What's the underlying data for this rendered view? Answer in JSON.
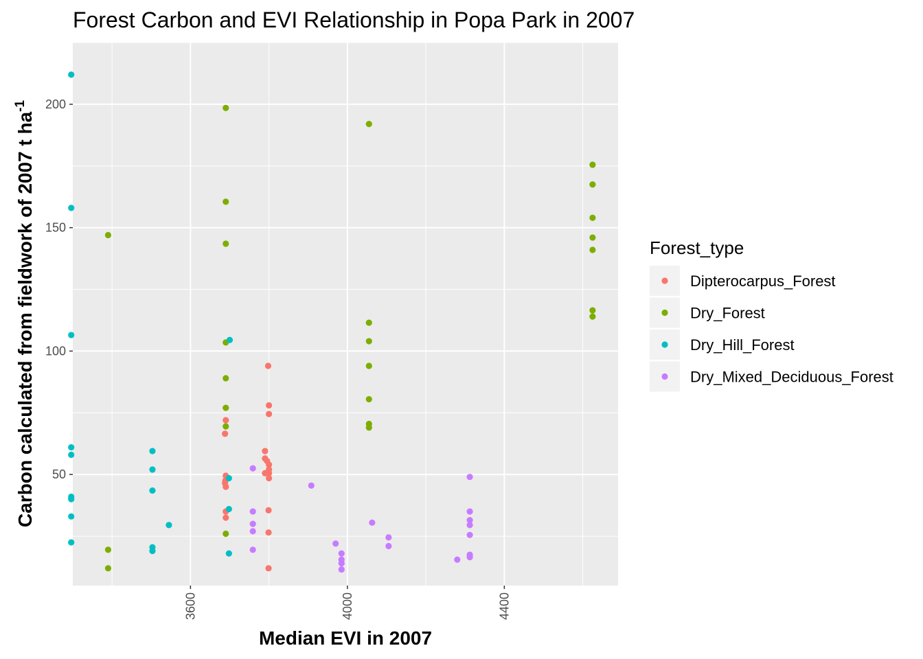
{
  "chart_data": {
    "type": "scatter",
    "title": "Forest Carbon and EVI Relationship in Popa Park in 2007",
    "xlabel": "Median EVI in 2007",
    "ylabel_main": "Carbon calculated from fieldwork of 2007 t ha",
    "ylabel_sup": "-1",
    "xlim": [
      3300,
      4690
    ],
    "ylim": [
      5,
      225
    ],
    "x_ticks": [
      3600,
      4000,
      4400
    ],
    "x_tick_labels": [
      "3600",
      "4000",
      "4400"
    ],
    "y_ticks": [
      50,
      100,
      150,
      200
    ],
    "y_tick_labels": [
      "50",
      "100",
      "150",
      "200"
    ],
    "grid": true,
    "background": "#ebebeb",
    "legend": {
      "title": "Forest_type",
      "placement": "right"
    },
    "series": [
      {
        "name": "Dipterocarpus_Forest",
        "color": "#f8766d",
        "points": [
          [
            3690,
            72
          ],
          [
            3688,
            66.5
          ],
          [
            3690,
            49.5
          ],
          [
            3689,
            47.5
          ],
          [
            3688,
            46.5
          ],
          [
            3690,
            45
          ],
          [
            3690,
            35
          ],
          [
            3690,
            32.5
          ],
          [
            3790,
            59.5
          ],
          [
            3790,
            56.5
          ],
          [
            3795,
            55.5
          ],
          [
            3800,
            54
          ],
          [
            3800,
            52
          ],
          [
            3790,
            50.5
          ],
          [
            3800,
            50.5
          ],
          [
            3800,
            48.5
          ],
          [
            3798,
            94
          ],
          [
            3800,
            78
          ],
          [
            3800,
            74.5
          ],
          [
            3799,
            35.5
          ],
          [
            3799,
            26.5
          ],
          [
            3799,
            12
          ]
        ]
      },
      {
        "name": "Dry_Forest",
        "color": "#7cae00",
        "points": [
          [
            3390,
            147
          ],
          [
            3390,
            19.5
          ],
          [
            3390,
            12
          ],
          [
            3690,
            198.5
          ],
          [
            3690,
            160.5
          ],
          [
            3690,
            143.5
          ],
          [
            3690,
            103.5
          ],
          [
            3690,
            89
          ],
          [
            3690,
            77
          ],
          [
            3690,
            69.5
          ],
          [
            3690,
            26
          ],
          [
            4055,
            192
          ],
          [
            4055,
            111.5
          ],
          [
            4055,
            104
          ],
          [
            4055,
            94
          ],
          [
            4055,
            80.5
          ],
          [
            4055,
            70.5
          ],
          [
            4055,
            69
          ],
          [
            4625,
            175.5
          ],
          [
            4625,
            167.5
          ],
          [
            4625,
            154
          ],
          [
            4625,
            146
          ],
          [
            4625,
            141
          ],
          [
            4625,
            116.5
          ],
          [
            4625,
            114
          ]
        ]
      },
      {
        "name": "Dry_Hill_Forest",
        "color": "#00bfc4",
        "points": [
          [
            3296,
            212
          ],
          [
            3296,
            158
          ],
          [
            3296,
            106.5
          ],
          [
            3296,
            61
          ],
          [
            3296,
            58
          ],
          [
            3296,
            41
          ],
          [
            3296,
            40
          ],
          [
            3296,
            33
          ],
          [
            3296,
            22.5
          ],
          [
            3503,
            59.5
          ],
          [
            3503,
            52
          ],
          [
            3503,
            43.5
          ],
          [
            3503,
            20.5
          ],
          [
            3503,
            19
          ],
          [
            3545,
            29.5
          ],
          [
            3700,
            104.5
          ],
          [
            3698,
            48.5
          ],
          [
            3698,
            36
          ],
          [
            3698,
            18
          ]
        ]
      },
      {
        "name": "Dry_Mixed_Deciduous_Forest",
        "color": "#c77cff",
        "points": [
          [
            3759,
            52.5
          ],
          [
            3759,
            35
          ],
          [
            3759,
            30
          ],
          [
            3759,
            27
          ],
          [
            3759,
            19.5
          ],
          [
            3908,
            45.5
          ],
          [
            3970,
            22
          ],
          [
            3985,
            18
          ],
          [
            3985,
            15.5
          ],
          [
            3985,
            14
          ],
          [
            3985,
            11.5
          ],
          [
            4063,
            30.5
          ],
          [
            4105,
            24.5
          ],
          [
            4105,
            21
          ],
          [
            4280,
            15.5
          ],
          [
            4312,
            49
          ],
          [
            4312,
            35
          ],
          [
            4312,
            31.5
          ],
          [
            4312,
            29.5
          ],
          [
            4312,
            25.5
          ],
          [
            4312,
            17.5
          ],
          [
            4312,
            16.5
          ]
        ]
      }
    ]
  }
}
